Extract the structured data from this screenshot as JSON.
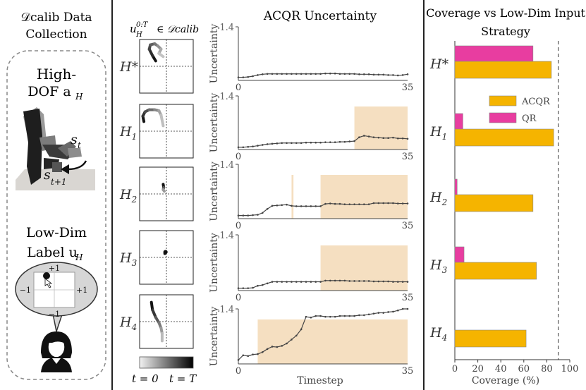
{
  "left_panel": {
    "title_line1": "𝒟calib Data",
    "title_line2": "Collection",
    "high_dof_line1": "High-",
    "high_dof_line2": "DOF a",
    "high_dof_sub": "H",
    "state_label": "s",
    "state_sub": "t",
    "next_state_label": "s",
    "next_state_sub": "t+1",
    "low_dim_line1": "Low-Dim",
    "low_dim_line2": "Label u",
    "low_dim_sub": "H",
    "joystick": {
      "top": "+1",
      "bottom": "−1",
      "left": "−1",
      "right": "+1"
    }
  },
  "trajectory_column": {
    "title": "u",
    "title_sup": "0:T",
    "title_sub": "H",
    "title_rest": "∈ 𝒟calib",
    "rows": [
      "H*",
      "H1",
      "H2",
      "H3",
      "H4"
    ],
    "gradient_left": "t = 0",
    "gradient_right": "t = T"
  },
  "uncertainty_chart": {
    "title": "ACQR Uncertainty",
    "ylabel": "Uncertainty",
    "xlabel": "Timestep",
    "x_min": 0,
    "x_max": 35,
    "y_max": 1.4,
    "line_color": "#444444",
    "shade_color": "#f5dfc1"
  },
  "chart_data": [
    {
      "type": "line",
      "title": "ACQR Uncertainty",
      "xlabel": "Timestep",
      "ylabel": "Uncertainty",
      "xlim": [
        0,
        35
      ],
      "ylim": [
        0,
        1.4
      ],
      "series": [
        {
          "name": "H*",
          "shaded": [],
          "values": [
            0.08,
            0.08,
            0.09,
            0.11,
            0.14,
            0.16,
            0.17,
            0.17,
            0.17,
            0.17,
            0.17,
            0.17,
            0.17,
            0.17,
            0.17,
            0.17,
            0.17,
            0.17,
            0.18,
            0.18,
            0.18,
            0.17,
            0.17,
            0.17,
            0.17,
            0.16,
            0.16,
            0.16,
            0.15,
            0.15,
            0.15,
            0.14,
            0.14,
            0.13,
            0.14,
            0.16
          ]
        },
        {
          "name": "H1",
          "shaded": [
            [
              24,
              35
            ]
          ],
          "values": [
            0.06,
            0.06,
            0.07,
            0.08,
            0.1,
            0.12,
            0.14,
            0.15,
            0.16,
            0.17,
            0.17,
            0.17,
            0.17,
            0.17,
            0.18,
            0.18,
            0.18,
            0.18,
            0.19,
            0.19,
            0.19,
            0.2,
            0.2,
            0.21,
            0.22,
            0.32,
            0.36,
            0.34,
            0.32,
            0.31,
            0.3,
            0.3,
            0.31,
            0.29,
            0.29,
            0.28
          ]
        },
        {
          "name": "H2",
          "shaded": [
            [
              11,
              11.4
            ],
            [
              17,
              35
            ]
          ],
          "values": [
            0.08,
            0.08,
            0.08,
            0.09,
            0.1,
            0.15,
            0.25,
            0.33,
            0.34,
            0.35,
            0.36,
            0.33,
            0.32,
            0.32,
            0.32,
            0.32,
            0.32,
            0.32,
            0.38,
            0.39,
            0.38,
            0.38,
            0.37,
            0.37,
            0.37,
            0.37,
            0.37,
            0.37,
            0.4,
            0.4,
            0.4,
            0.4,
            0.4,
            0.39,
            0.39,
            0.39
          ]
        },
        {
          "name": "H3",
          "shaded": [
            [
              17,
              35
            ]
          ],
          "values": [
            0.06,
            0.06,
            0.06,
            0.07,
            0.12,
            0.14,
            0.18,
            0.22,
            0.22,
            0.22,
            0.22,
            0.22,
            0.22,
            0.22,
            0.22,
            0.22,
            0.22,
            0.22,
            0.25,
            0.25,
            0.25,
            0.25,
            0.25,
            0.24,
            0.24,
            0.24,
            0.24,
            0.24,
            0.23,
            0.23,
            0.23,
            0.23,
            0.22,
            0.22,
            0.22,
            0.22
          ]
        },
        {
          "name": "H4",
          "shaded": [
            [
              4,
              35
            ]
          ],
          "values": [
            0.1,
            0.22,
            0.2,
            0.24,
            0.25,
            0.3,
            0.38,
            0.44,
            0.43,
            0.46,
            0.52,
            0.62,
            0.72,
            0.88,
            1.2,
            1.18,
            1.22,
            1.22,
            1.2,
            1.2,
            1.2,
            1.22,
            1.22,
            1.22,
            1.22,
            1.24,
            1.24,
            1.26,
            1.28,
            1.3,
            1.3,
            1.32,
            1.33,
            1.36,
            1.4,
            1.4
          ]
        }
      ]
    },
    {
      "type": "bar",
      "orientation": "horizontal",
      "title": "Coverage vs Low-Dim Input Strategy",
      "xlabel": "Coverage (%)",
      "xlim": [
        0,
        100
      ],
      "ticks": [
        0,
        20,
        40,
        60,
        80,
        100
      ],
      "threshold": 90,
      "categories": [
        "H*",
        "H1",
        "H2",
        "H3",
        "H4"
      ],
      "series": [
        {
          "name": "QR",
          "color": "#e83da0",
          "values": [
            68,
            7,
            2,
            8,
            null
          ]
        },
        {
          "name": "ACQR",
          "color": "#f5b400",
          "values": [
            84,
            86,
            68,
            71,
            62
          ]
        }
      ],
      "legend": "upper-right"
    }
  ]
}
